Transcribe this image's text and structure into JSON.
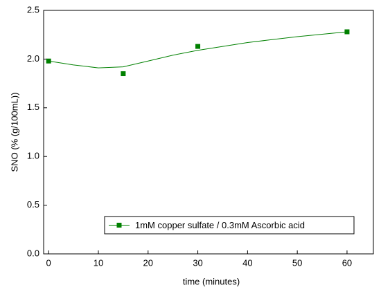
{
  "chart_data": {
    "type": "scatter",
    "x_label": "time (minutes)",
    "y_label": "SNO (% (g/100mL))",
    "series": [
      {
        "name": "1mM copper sulfate / 0.3mM Ascorbic acid",
        "color": "#008000",
        "x": [
          0,
          15,
          30,
          60
        ],
        "values": [
          1.98,
          1.85,
          2.13,
          2.28
        ],
        "fit": {
          "x": [
            0,
            5,
            10,
            15,
            20,
            25,
            30,
            40,
            50,
            60
          ],
          "values": [
            1.98,
            1.94,
            1.91,
            1.92,
            1.98,
            2.04,
            2.09,
            2.17,
            2.23,
            2.28
          ]
        }
      }
    ],
    "xlim": [
      -1,
      65.3
    ],
    "ylim": [
      0,
      2.5
    ],
    "xticks": [
      0,
      10,
      20,
      30,
      40,
      50,
      60
    ],
    "yticks": [
      {
        "value": 0,
        "label": "0.0"
      },
      {
        "value": 0.5,
        "label": "0.5"
      },
      {
        "value": 1,
        "label": "1.0"
      },
      {
        "value": 1.5,
        "label": "1.5"
      },
      {
        "value": 2,
        "label": "2.0"
      },
      {
        "value": 2.5,
        "label": "2.5"
      }
    ],
    "legend": "lower right"
  }
}
